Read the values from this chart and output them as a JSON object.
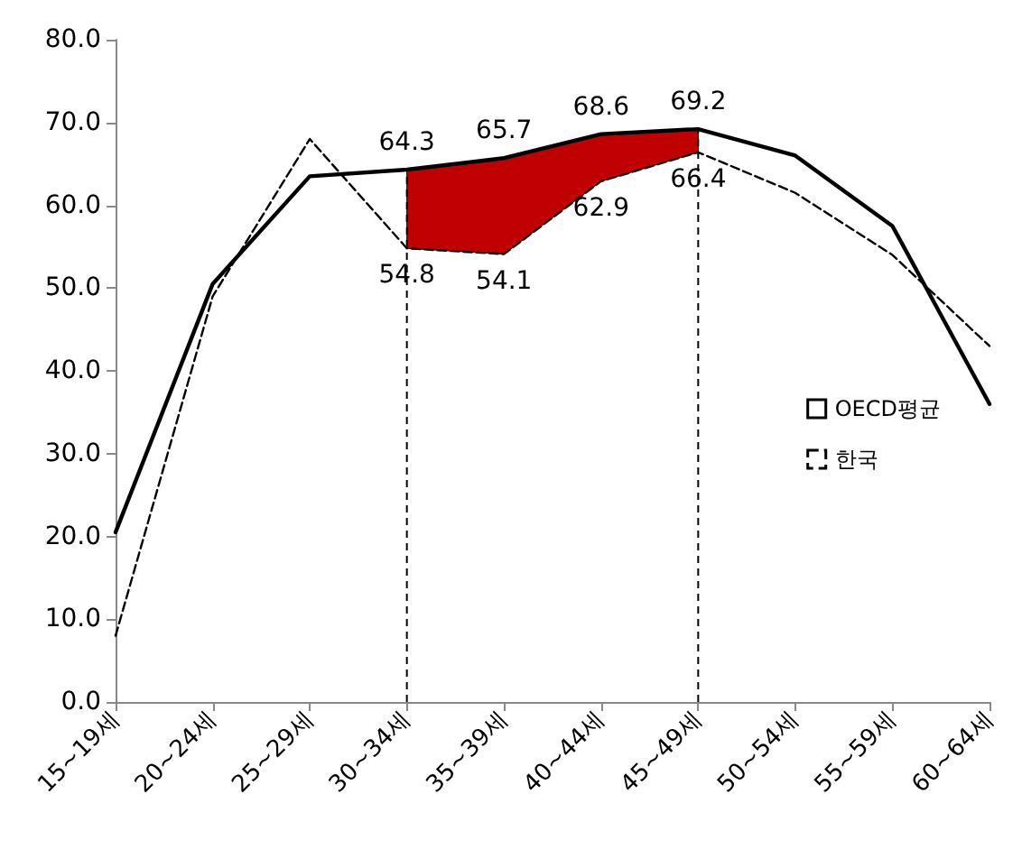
{
  "chart_data": {
    "type": "line",
    "categories": [
      "15~19세",
      "20~24세",
      "25~29세",
      "30~34세",
      "35~39세",
      "40~44세",
      "45~49세",
      "50~54세",
      "55~59세",
      "60~64세"
    ],
    "series": [
      {
        "name": "OECD평균",
        "color": "#000000",
        "line_style": "solid",
        "values": [
          20.5,
          50.5,
          63.5,
          64.3,
          65.7,
          68.6,
          69.2,
          66.0,
          57.5,
          36.0
        ],
        "value_labels": [
          null,
          null,
          null,
          "64.3",
          "65.7",
          "68.6",
          "69.2",
          null,
          null,
          null
        ]
      },
      {
        "name": "한국",
        "color": "#000000",
        "line_style": "dashed",
        "values": [
          8.0,
          49.0,
          68.0,
          54.8,
          54.1,
          62.9,
          66.4,
          61.5,
          54.0,
          43.0
        ],
        "value_labels": [
          null,
          null,
          null,
          "54.8",
          "54.1",
          "62.9",
          "66.4",
          null,
          null,
          null
        ]
      },
      {
        "type": "area",
        "color": "#c00000",
        "values": [
          null,
          null,
          null,
          64.3,
          65.7,
          68.6,
          69.2,
          null,
          null,
          null
        ]
      }
    ],
    "ylim": [
      0,
      80
    ],
    "yticks": [
      {
        "value": 0,
        "label": "0.0"
      },
      {
        "value": 10,
        "label": "10.0"
      },
      {
        "value": 20,
        "label": "20.0"
      },
      {
        "value": 30,
        "label": "30.0"
      },
      {
        "value": 40,
        "label": "40.0"
      },
      {
        "value": 50,
        "label": "50.0"
      },
      {
        "value": 60,
        "label": "60.0"
      },
      {
        "value": 70,
        "label": "70.0"
      },
      {
        "value": 80,
        "label": "80.0"
      }
    ],
    "ref_lines": [
      {
        "axis": "x",
        "value": "30~34세",
        "label": null,
        "color": "#000000",
        "line_style": "dashed"
      },
      {
        "axis": "x",
        "value": "45~49세",
        "label": null,
        "color": "#000000",
        "line_style": "dashed"
      }
    ],
    "grid": false,
    "legend": "right",
    "marker": "none"
  }
}
